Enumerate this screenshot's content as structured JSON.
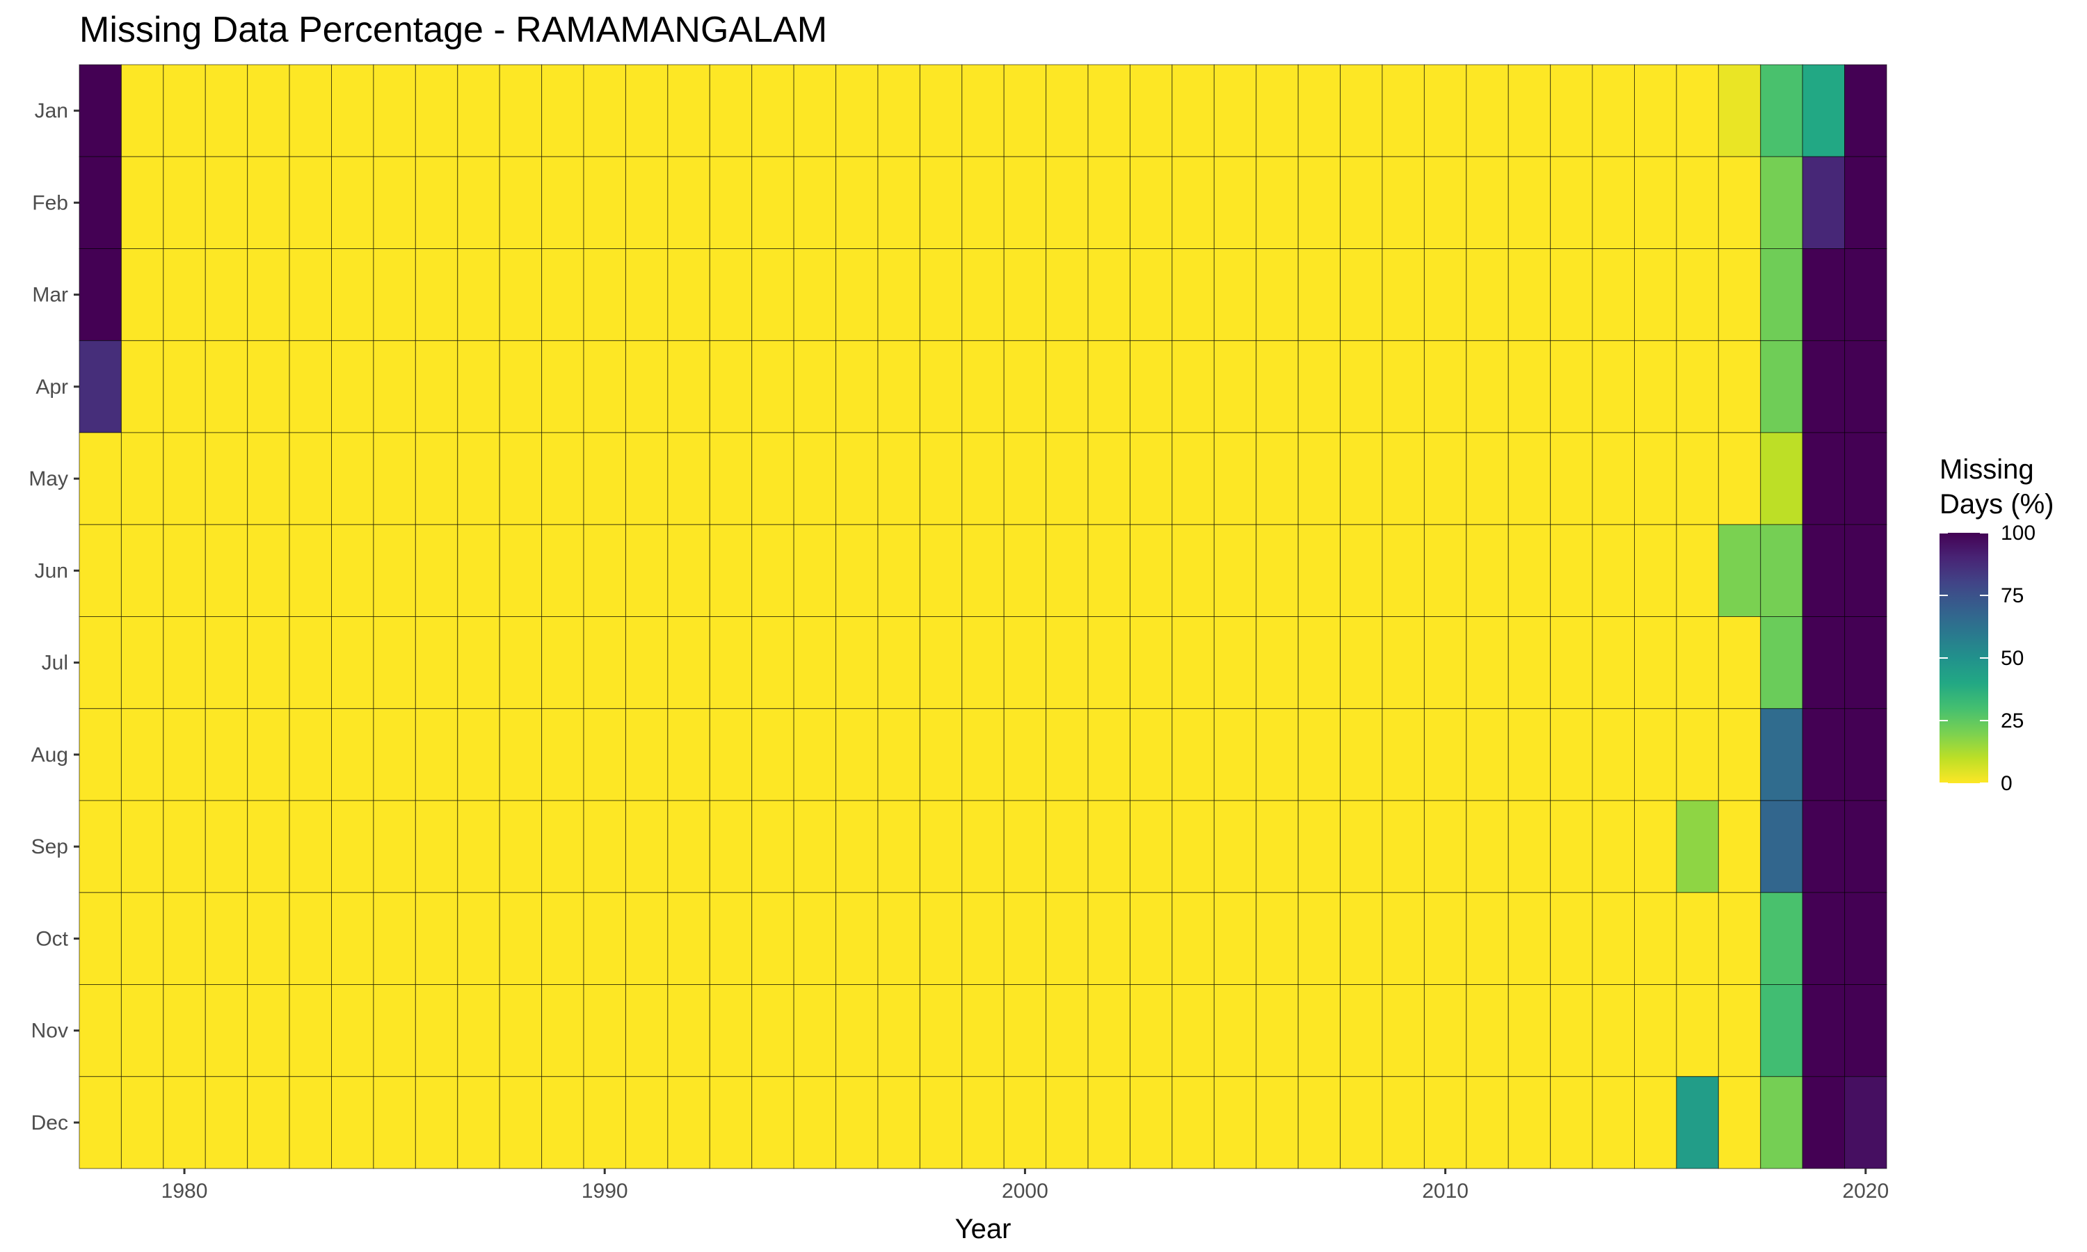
{
  "chart_data": {
    "type": "heatmap",
    "title": "Missing Data Percentage - RAMAMANGALAM",
    "xlabel": "Year",
    "ylabel": "",
    "x_ticks": [
      1980,
      1990,
      2000,
      2010,
      2020
    ],
    "months": [
      "Jan",
      "Feb",
      "Mar",
      "Apr",
      "May",
      "Jun",
      "Jul",
      "Aug",
      "Sep",
      "Oct",
      "Nov",
      "Dec"
    ],
    "years": [
      1978,
      1979,
      1980,
      1981,
      1982,
      1983,
      1984,
      1985,
      1986,
      1987,
      1988,
      1989,
      1990,
      1991,
      1992,
      1993,
      1994,
      1995,
      1996,
      1997,
      1998,
      1999,
      2000,
      2001,
      2002,
      2003,
      2004,
      2005,
      2006,
      2007,
      2008,
      2009,
      2010,
      2011,
      2012,
      2013,
      2014,
      2015,
      2016,
      2017,
      2018,
      2019,
      2020
    ],
    "default_value": 0,
    "nonzero_cells": [
      {
        "year": 1978,
        "month": "Jan",
        "value": 100
      },
      {
        "year": 1978,
        "month": "Feb",
        "value": 100
      },
      {
        "year": 1978,
        "month": "Mar",
        "value": 100
      },
      {
        "year": 1978,
        "month": "Apr",
        "value": 87
      },
      {
        "year": 2016,
        "month": "Sep",
        "value": 17
      },
      {
        "year": 2016,
        "month": "Dec",
        "value": 45
      },
      {
        "year": 2017,
        "month": "Jan",
        "value": 3
      },
      {
        "year": 2017,
        "month": "Jun",
        "value": 20
      },
      {
        "year": 2018,
        "month": "Jan",
        "value": 29
      },
      {
        "year": 2018,
        "month": "Feb",
        "value": 21
      },
      {
        "year": 2018,
        "month": "Mar",
        "value": 22
      },
      {
        "year": 2018,
        "month": "Apr",
        "value": 22
      },
      {
        "year": 2018,
        "month": "May",
        "value": 10
      },
      {
        "year": 2018,
        "month": "Jun",
        "value": 21
      },
      {
        "year": 2018,
        "month": "Jul",
        "value": 23
      },
      {
        "year": 2018,
        "month": "Aug",
        "value": 65
      },
      {
        "year": 2018,
        "month": "Sep",
        "value": 67
      },
      {
        "year": 2018,
        "month": "Oct",
        "value": 29
      },
      {
        "year": 2018,
        "month": "Nov",
        "value": 31
      },
      {
        "year": 2018,
        "month": "Dec",
        "value": 21
      },
      {
        "year": 2019,
        "month": "Jan",
        "value": 40
      },
      {
        "year": 2019,
        "month": "Feb",
        "value": 89
      },
      {
        "year": 2019,
        "month": "Mar",
        "value": 100
      },
      {
        "year": 2019,
        "month": "Apr",
        "value": 100
      },
      {
        "year": 2019,
        "month": "May",
        "value": 100
      },
      {
        "year": 2019,
        "month": "Jun",
        "value": 100
      },
      {
        "year": 2019,
        "month": "Jul",
        "value": 100
      },
      {
        "year": 2019,
        "month": "Aug",
        "value": 100
      },
      {
        "year": 2019,
        "month": "Sep",
        "value": 100
      },
      {
        "year": 2019,
        "month": "Oct",
        "value": 100
      },
      {
        "year": 2019,
        "month": "Nov",
        "value": 100
      },
      {
        "year": 2019,
        "month": "Dec",
        "value": 100
      },
      {
        "year": 2020,
        "month": "Jan",
        "value": 100
      },
      {
        "year": 2020,
        "month": "Feb",
        "value": 100
      },
      {
        "year": 2020,
        "month": "Mar",
        "value": 100
      },
      {
        "year": 2020,
        "month": "Apr",
        "value": 100
      },
      {
        "year": 2020,
        "month": "May",
        "value": 100
      },
      {
        "year": 2020,
        "month": "Jun",
        "value": 100
      },
      {
        "year": 2020,
        "month": "Jul",
        "value": 100
      },
      {
        "year": 2020,
        "month": "Aug",
        "value": 100
      },
      {
        "year": 2020,
        "month": "Sep",
        "value": 100
      },
      {
        "year": 2020,
        "month": "Oct",
        "value": 100
      },
      {
        "year": 2020,
        "month": "Nov",
        "value": 100
      },
      {
        "year": 2020,
        "month": "Dec",
        "value": 96
      }
    ],
    "legend": {
      "title_line1": "Missing",
      "title_line2": "Days (%)",
      "ticks": [
        100,
        75,
        50,
        25,
        0
      ],
      "range": [
        0,
        100
      ],
      "placement": "right",
      "colormap": "viridis (reversed: 0 = yellow, 100 = dark purple)"
    },
    "grid": true
  }
}
